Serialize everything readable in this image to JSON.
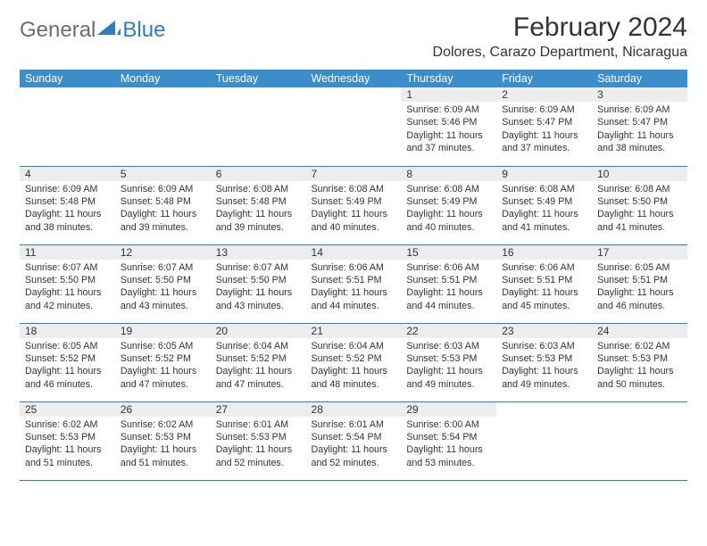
{
  "logo": {
    "text_general": "General",
    "text_blue": "Blue"
  },
  "title": "February 2024",
  "location": "Dolores, Carazo Department, Nicaragua",
  "colors": {
    "header_bg": "#3c8dcc",
    "border": "#2d7dc1",
    "daynum_bg": "#ededed",
    "text": "#333333",
    "logo_gray": "#6c6c6c",
    "logo_blue": "#2d7dc1"
  },
  "day_headers": [
    "Sunday",
    "Monday",
    "Tuesday",
    "Wednesday",
    "Thursday",
    "Friday",
    "Saturday"
  ],
  "weeks": [
    [
      {
        "day": "",
        "sunrise": "",
        "sunset": "",
        "daylight": ""
      },
      {
        "day": "",
        "sunrise": "",
        "sunset": "",
        "daylight": ""
      },
      {
        "day": "",
        "sunrise": "",
        "sunset": "",
        "daylight": ""
      },
      {
        "day": "",
        "sunrise": "",
        "sunset": "",
        "daylight": ""
      },
      {
        "day": "1",
        "sunrise": "Sunrise: 6:09 AM",
        "sunset": "Sunset: 5:46 PM",
        "daylight": "Daylight: 11 hours and 37 minutes."
      },
      {
        "day": "2",
        "sunrise": "Sunrise: 6:09 AM",
        "sunset": "Sunset: 5:47 PM",
        "daylight": "Daylight: 11 hours and 37 minutes."
      },
      {
        "day": "3",
        "sunrise": "Sunrise: 6:09 AM",
        "sunset": "Sunset: 5:47 PM",
        "daylight": "Daylight: 11 hours and 38 minutes."
      }
    ],
    [
      {
        "day": "4",
        "sunrise": "Sunrise: 6:09 AM",
        "sunset": "Sunset: 5:48 PM",
        "daylight": "Daylight: 11 hours and 38 minutes."
      },
      {
        "day": "5",
        "sunrise": "Sunrise: 6:09 AM",
        "sunset": "Sunset: 5:48 PM",
        "daylight": "Daylight: 11 hours and 39 minutes."
      },
      {
        "day": "6",
        "sunrise": "Sunrise: 6:08 AM",
        "sunset": "Sunset: 5:48 PM",
        "daylight": "Daylight: 11 hours and 39 minutes."
      },
      {
        "day": "7",
        "sunrise": "Sunrise: 6:08 AM",
        "sunset": "Sunset: 5:49 PM",
        "daylight": "Daylight: 11 hours and 40 minutes."
      },
      {
        "day": "8",
        "sunrise": "Sunrise: 6:08 AM",
        "sunset": "Sunset: 5:49 PM",
        "daylight": "Daylight: 11 hours and 40 minutes."
      },
      {
        "day": "9",
        "sunrise": "Sunrise: 6:08 AM",
        "sunset": "Sunset: 5:49 PM",
        "daylight": "Daylight: 11 hours and 41 minutes."
      },
      {
        "day": "10",
        "sunrise": "Sunrise: 6:08 AM",
        "sunset": "Sunset: 5:50 PM",
        "daylight": "Daylight: 11 hours and 41 minutes."
      }
    ],
    [
      {
        "day": "11",
        "sunrise": "Sunrise: 6:07 AM",
        "sunset": "Sunset: 5:50 PM",
        "daylight": "Daylight: 11 hours and 42 minutes."
      },
      {
        "day": "12",
        "sunrise": "Sunrise: 6:07 AM",
        "sunset": "Sunset: 5:50 PM",
        "daylight": "Daylight: 11 hours and 43 minutes."
      },
      {
        "day": "13",
        "sunrise": "Sunrise: 6:07 AM",
        "sunset": "Sunset: 5:50 PM",
        "daylight": "Daylight: 11 hours and 43 minutes."
      },
      {
        "day": "14",
        "sunrise": "Sunrise: 6:06 AM",
        "sunset": "Sunset: 5:51 PM",
        "daylight": "Daylight: 11 hours and 44 minutes."
      },
      {
        "day": "15",
        "sunrise": "Sunrise: 6:06 AM",
        "sunset": "Sunset: 5:51 PM",
        "daylight": "Daylight: 11 hours and 44 minutes."
      },
      {
        "day": "16",
        "sunrise": "Sunrise: 6:06 AM",
        "sunset": "Sunset: 5:51 PM",
        "daylight": "Daylight: 11 hours and 45 minutes."
      },
      {
        "day": "17",
        "sunrise": "Sunrise: 6:05 AM",
        "sunset": "Sunset: 5:51 PM",
        "daylight": "Daylight: 11 hours and 46 minutes."
      }
    ],
    [
      {
        "day": "18",
        "sunrise": "Sunrise: 6:05 AM",
        "sunset": "Sunset: 5:52 PM",
        "daylight": "Daylight: 11 hours and 46 minutes."
      },
      {
        "day": "19",
        "sunrise": "Sunrise: 6:05 AM",
        "sunset": "Sunset: 5:52 PM",
        "daylight": "Daylight: 11 hours and 47 minutes."
      },
      {
        "day": "20",
        "sunrise": "Sunrise: 6:04 AM",
        "sunset": "Sunset: 5:52 PM",
        "daylight": "Daylight: 11 hours and 47 minutes."
      },
      {
        "day": "21",
        "sunrise": "Sunrise: 6:04 AM",
        "sunset": "Sunset: 5:52 PM",
        "daylight": "Daylight: 11 hours and 48 minutes."
      },
      {
        "day": "22",
        "sunrise": "Sunrise: 6:03 AM",
        "sunset": "Sunset: 5:53 PM",
        "daylight": "Daylight: 11 hours and 49 minutes."
      },
      {
        "day": "23",
        "sunrise": "Sunrise: 6:03 AM",
        "sunset": "Sunset: 5:53 PM",
        "daylight": "Daylight: 11 hours and 49 minutes."
      },
      {
        "day": "24",
        "sunrise": "Sunrise: 6:02 AM",
        "sunset": "Sunset: 5:53 PM",
        "daylight": "Daylight: 11 hours and 50 minutes."
      }
    ],
    [
      {
        "day": "25",
        "sunrise": "Sunrise: 6:02 AM",
        "sunset": "Sunset: 5:53 PM",
        "daylight": "Daylight: 11 hours and 51 minutes."
      },
      {
        "day": "26",
        "sunrise": "Sunrise: 6:02 AM",
        "sunset": "Sunset: 5:53 PM",
        "daylight": "Daylight: 11 hours and 51 minutes."
      },
      {
        "day": "27",
        "sunrise": "Sunrise: 6:01 AM",
        "sunset": "Sunset: 5:53 PM",
        "daylight": "Daylight: 11 hours and 52 minutes."
      },
      {
        "day": "28",
        "sunrise": "Sunrise: 6:01 AM",
        "sunset": "Sunset: 5:54 PM",
        "daylight": "Daylight: 11 hours and 52 minutes."
      },
      {
        "day": "29",
        "sunrise": "Sunrise: 6:00 AM",
        "sunset": "Sunset: 5:54 PM",
        "daylight": "Daylight: 11 hours and 53 minutes."
      },
      {
        "day": "",
        "sunrise": "",
        "sunset": "",
        "daylight": ""
      },
      {
        "day": "",
        "sunrise": "",
        "sunset": "",
        "daylight": ""
      }
    ]
  ]
}
